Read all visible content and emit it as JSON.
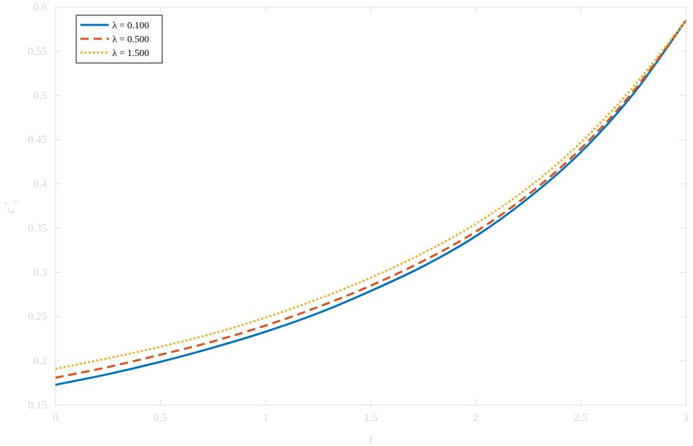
{
  "chart_data": {
    "type": "line",
    "title": "",
    "xlabel": "t",
    "ylabel": "c_t^*",
    "ylabel_main": "c",
    "ylabel_sub": "t",
    "ylabel_sup": "*",
    "xlim": [
      0,
      3
    ],
    "ylim": [
      0.15,
      0.6
    ],
    "x_ticks": [
      0,
      0.5,
      1,
      1.5,
      2,
      2.5,
      3
    ],
    "x_tick_labels": [
      "0",
      "0.5",
      "1",
      "1.5",
      "2",
      "2.5",
      "3"
    ],
    "y_ticks": [
      0.15,
      0.2,
      0.25,
      0.3,
      0.35,
      0.4,
      0.45,
      0.5,
      0.55,
      0.6
    ],
    "y_tick_labels": [
      "0.15",
      "0.2",
      "0.25",
      "0.3",
      "0.35",
      "0.4",
      "0.45",
      "0.5",
      "0.55",
      "0.6"
    ],
    "grid": false,
    "legend_position": "top-left",
    "x": [
      0,
      0.25,
      0.5,
      0.75,
      1,
      1.25,
      1.5,
      1.75,
      2,
      2.25,
      2.5,
      2.75,
      3
    ],
    "series": [
      {
        "name": "λ = 0.100",
        "style": "solid",
        "color": "#0072BD",
        "values": [
          0.173,
          0.185,
          0.199,
          0.215,
          0.233,
          0.254,
          0.279,
          0.307,
          0.341,
          0.384,
          0.436,
          0.502,
          0.585
        ]
      },
      {
        "name": "λ = 0.500",
        "style": "dashed",
        "color": "#D95319",
        "values": [
          0.181,
          0.193,
          0.207,
          0.222,
          0.24,
          0.261,
          0.285,
          0.313,
          0.346,
          0.388,
          0.44,
          0.505,
          0.585
        ]
      },
      {
        "name": "λ = 1.500",
        "style": "dotted",
        "color": "#EDB120",
        "values": [
          0.191,
          0.203,
          0.216,
          0.231,
          0.249,
          0.27,
          0.294,
          0.322,
          0.355,
          0.396,
          0.447,
          0.51,
          0.585
        ]
      }
    ]
  }
}
